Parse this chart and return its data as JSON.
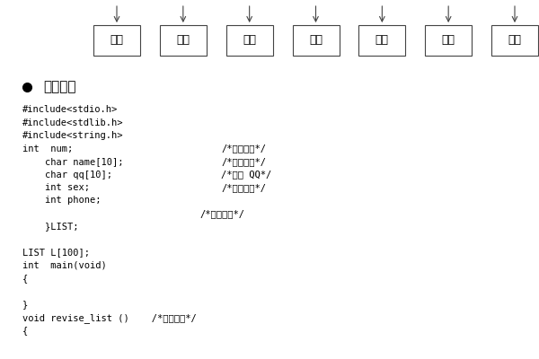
{
  "bg_color": "#ffffff",
  "boxes": [
    "创建",
    "查找",
    "删除",
    "修改",
    "插入",
    "列出",
    "保存"
  ],
  "section_title": "主体轮廓",
  "box_labels_ascii": [
    "创建",
    "查找",
    "删除",
    "修改",
    "插入",
    "列出",
    "保存"
  ],
  "code_lines": [
    [
      "#include<stdio.h>",
      null,
      null
    ],
    [
      "#include<stdlib.h>",
      null,
      null
    ],
    [
      "#include<string.h>",
      null,
      null
    ],
    [
      "int  num;",
      "/*学生学号*/",
      0.41
    ],
    [
      "    char name[10];",
      "/*学生姓名*/",
      0.41
    ],
    [
      "    char qq[10];",
      "/*学生 QQ*/",
      0.41
    ],
    [
      "    int sex;",
      "/*学生性别*/",
      0.41
    ],
    [
      "    int phone;",
      null,
      null
    ],
    [
      "",
      "/*学生电话*/",
      0.37
    ],
    [
      "    }LIST;",
      null,
      null
    ],
    [
      "",
      null,
      null
    ],
    [
      "LIST L[100];",
      null,
      null
    ],
    [
      "int  main(void)",
      null,
      null
    ],
    [
      "{",
      null,
      null
    ],
    [
      "",
      null,
      null
    ],
    [
      "}",
      null,
      null
    ],
    [
      "void revise_list ()    /*修改数组*/",
      null,
      null
    ],
    [
      "{",
      null,
      null
    ]
  ]
}
